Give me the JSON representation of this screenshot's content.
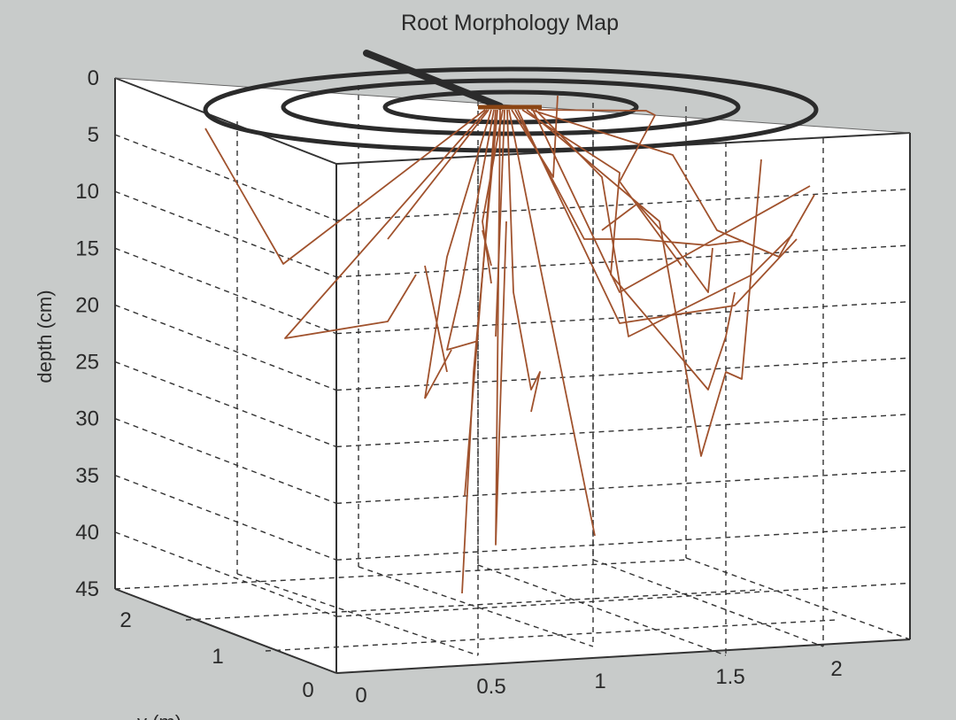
{
  "chart_data": {
    "type": "3d-line",
    "title": "Root Morphology Map",
    "zlabel": "depth (cm)",
    "ylabel": "y (m)",
    "xlabel": "",
    "z_ticks": [
      "0",
      "5",
      "10",
      "15",
      "20",
      "25",
      "30",
      "35",
      "40",
      "45"
    ],
    "x_ticks": [
      "0",
      "0.5",
      "1",
      "1.5",
      "2"
    ],
    "y_ticks": [
      "0",
      "1",
      "2"
    ],
    "zlim": [
      0,
      45
    ],
    "z_reversed": true,
    "grid": true,
    "colors": {
      "roots": "#a0522d",
      "rings": "#2b2b2b",
      "stem": "#2b2b2b",
      "grid": "#333333",
      "panel": "#ffffff"
    }
  }
}
